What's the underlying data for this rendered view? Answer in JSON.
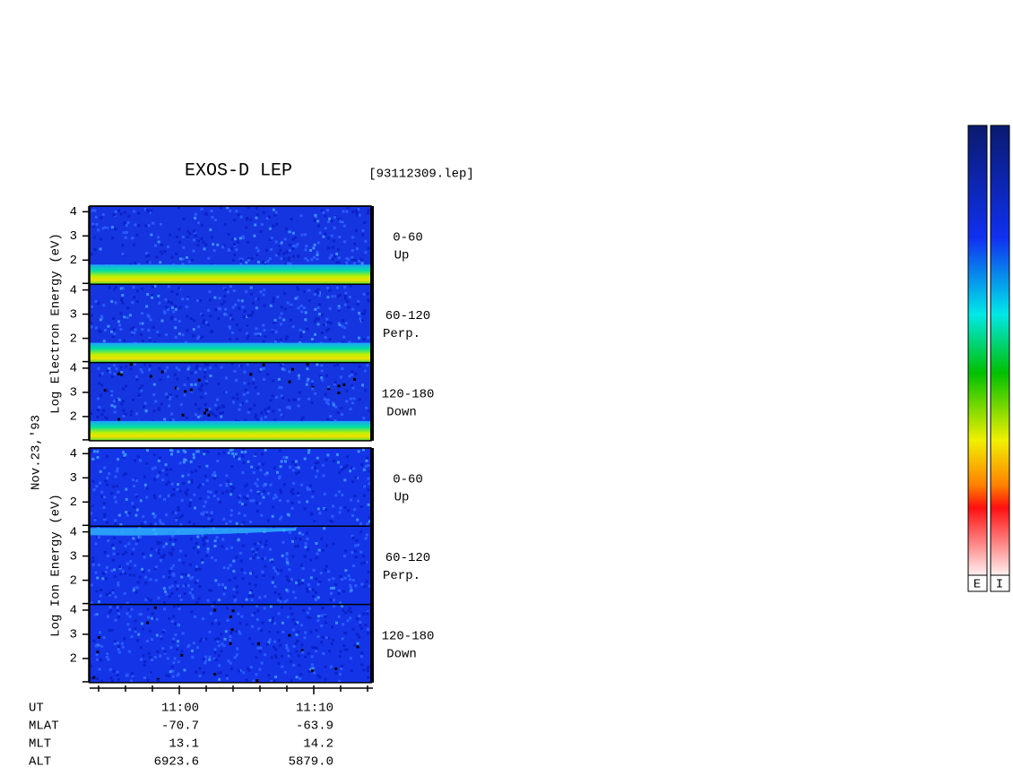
{
  "header": {
    "title": "EXOS-D LEP",
    "file": "[93112309.lep]"
  },
  "date": "Nov.23,'93",
  "groups": [
    {
      "label": "Log  Electron  Energy (eV)",
      "panels": [
        {
          "range": "0-60",
          "direction": "Up",
          "ticks": [
            "4",
            "3",
            "2"
          ]
        },
        {
          "range": "60-120",
          "direction": "Perp.",
          "ticks": [
            "4",
            "3",
            "2"
          ]
        },
        {
          "range": "120-180",
          "direction": "Down",
          "ticks": [
            "4",
            "3",
            "2"
          ]
        }
      ]
    },
    {
      "label": "Log  Ion  Energy (eV)",
      "panels": [
        {
          "range": "0-60",
          "direction": "Up",
          "ticks": [
            "4",
            "3",
            "2"
          ]
        },
        {
          "range": "60-120",
          "direction": "Perp.",
          "ticks": [
            "4",
            "3",
            "2"
          ]
        },
        {
          "range": "120-180",
          "direction": "Down",
          "ticks": [
            "4",
            "3",
            "2"
          ]
        }
      ]
    }
  ],
  "axis": {
    "rows": [
      {
        "label": "UT",
        "values": [
          "11:00",
          "11:10"
        ]
      },
      {
        "label": "MLAT",
        "values": [
          "-70.7",
          "-63.9"
        ]
      },
      {
        "label": "MLT",
        "values": [
          "13.1",
          "14.2"
        ]
      },
      {
        "label": "ALT",
        "values": [
          "6923.6",
          "5879.0"
        ]
      }
    ]
  },
  "colorbars": {
    "labels": [
      "E",
      "I"
    ]
  }
}
